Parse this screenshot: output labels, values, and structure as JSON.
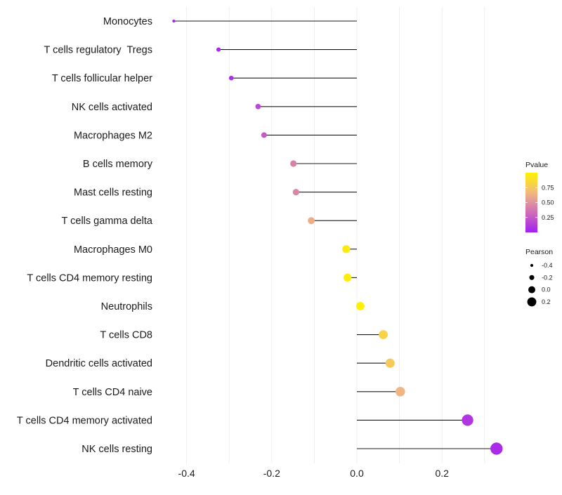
{
  "chart_data": {
    "type": "lollipop",
    "title": "",
    "xlabel": "",
    "ylabel": "",
    "xlim": [
      -0.44,
      0.34
    ],
    "x_ticks": [
      -0.4,
      -0.2,
      0.0,
      0.2
    ],
    "x_tick_labels": [
      "-0.4",
      "-0.2",
      "0.0",
      "0.2"
    ],
    "grid": "vertical",
    "categories": [
      "Monocytes",
      "T cells regulatory  Tregs",
      "T cells follicular helper",
      "NK cells activated",
      "Macrophages M2",
      "B cells memory",
      "Mast cells resting",
      "T cells gamma delta",
      "Macrophages M0",
      "T cells CD4 memory resting",
      "Neutrophils",
      "T cells CD8",
      "Dendritic cells activated",
      "T cells CD4 naive",
      "T cells CD4 memory activated",
      "NK cells resting"
    ],
    "pearson": [
      -0.43,
      -0.325,
      -0.295,
      -0.232,
      -0.218,
      -0.149,
      -0.143,
      -0.107,
      -0.025,
      -0.022,
      0.008,
      0.062,
      0.078,
      0.102,
      0.26,
      0.328
    ],
    "pvalue": [
      0.05,
      0.06,
      0.08,
      0.18,
      0.25,
      0.42,
      0.45,
      0.62,
      0.96,
      0.97,
      0.99,
      0.82,
      0.76,
      0.65,
      0.1,
      0.06
    ],
    "legend_pvalue": {
      "title": "Pvalue",
      "ticks": [
        0.75,
        0.5,
        0.25
      ],
      "tick_labels": [
        "0.75",
        "0.50",
        "0.25"
      ],
      "range": [
        0.0,
        1.0
      ],
      "colors": [
        "#a11ff2",
        "#cf6cb8",
        "#f2b97f",
        "#fff200"
      ],
      "placement": "right"
    },
    "legend_pearson": {
      "title": "Pearson",
      "values": [
        -0.4,
        -0.2,
        0.0,
        0.2
      ],
      "labels": [
        "-0.4",
        "-0.2",
        "0.0",
        "0.2"
      ],
      "placement": "right"
    }
  }
}
